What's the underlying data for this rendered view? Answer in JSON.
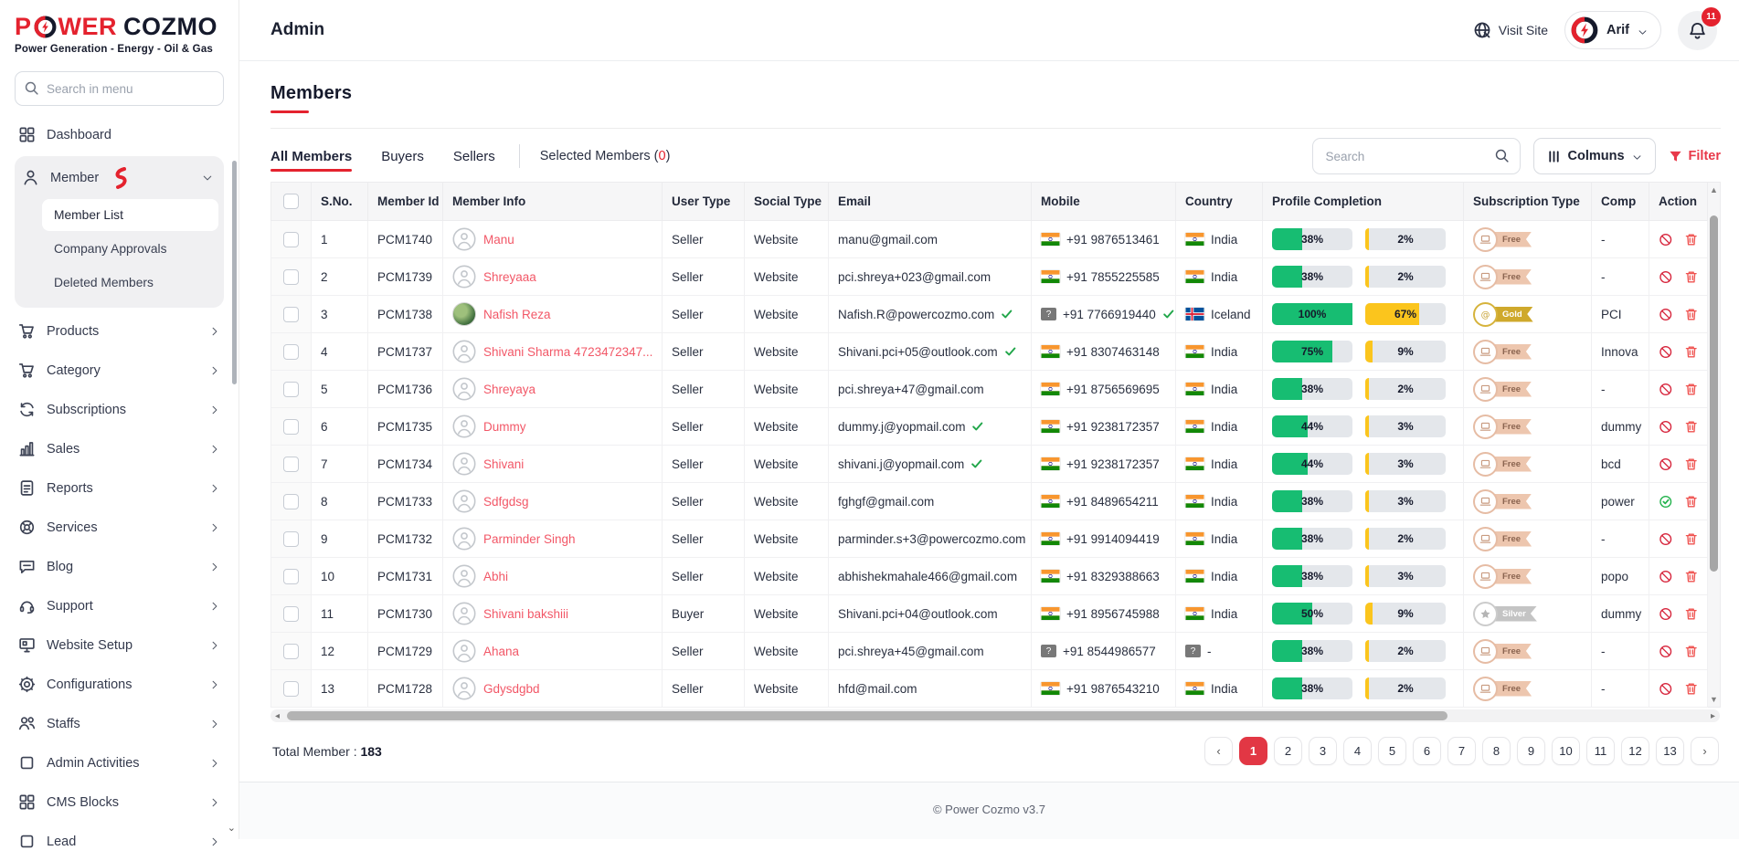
{
  "brand": {
    "power": "POWER",
    "cozmo": "COZMO",
    "tagline": "Power Generation - Energy - Oil & Gas"
  },
  "sidebar": {
    "search_placeholder": "Search in menu",
    "items": [
      {
        "label": "Dashboard",
        "icon": "dashboard",
        "chevron": false
      },
      {
        "label": "Member",
        "icon": "person",
        "chevron": "down",
        "expanded": true,
        "scribble": true,
        "submenu": [
          {
            "label": "Member List",
            "active": true
          },
          {
            "label": "Company Approvals",
            "active": false
          },
          {
            "label": "Deleted Members",
            "active": false
          }
        ]
      },
      {
        "label": "Products",
        "icon": "cart",
        "chevron": "right"
      },
      {
        "label": "Category",
        "icon": "cart",
        "chevron": "right"
      },
      {
        "label": "Subscriptions",
        "icon": "sync",
        "chevron": "right"
      },
      {
        "label": "Sales",
        "icon": "chart",
        "chevron": "right"
      },
      {
        "label": "Reports",
        "icon": "file",
        "chevron": "right"
      },
      {
        "label": "Services",
        "icon": "stamp",
        "chevron": "right"
      },
      {
        "label": "Blog",
        "icon": "chat",
        "chevron": "right"
      },
      {
        "label": "Support",
        "icon": "headset",
        "chevron": "right"
      },
      {
        "label": "Website Setup",
        "icon": "monitor",
        "chevron": "right"
      },
      {
        "label": "Configurations",
        "icon": "gear",
        "chevron": "right"
      },
      {
        "label": "Staffs",
        "icon": "people",
        "chevron": "right"
      },
      {
        "label": "Admin Activities",
        "icon": "box",
        "chevron": "right"
      },
      {
        "label": "CMS Blocks",
        "icon": "dashboard",
        "chevron": "right"
      },
      {
        "label": "Lead",
        "icon": "box",
        "chevron": "right"
      }
    ]
  },
  "header": {
    "title": "Admin",
    "visit_site": "Visit Site",
    "user_name": "Arif",
    "notification_count": "11"
  },
  "page": {
    "title": "Members"
  },
  "tabs": {
    "items": [
      {
        "label": "All Members",
        "active": true
      },
      {
        "label": "Buyers",
        "active": false
      },
      {
        "label": "Sellers",
        "active": false
      }
    ],
    "selected_label": "Selected Members",
    "selected_count": "0"
  },
  "controls": {
    "search_placeholder": "Search",
    "columns_label": "Colmuns",
    "filter_label": "Filter"
  },
  "table": {
    "columns": [
      "S.No.",
      "Member Id",
      "Member Info",
      "User Type",
      "Social Type",
      "Email",
      "Mobile",
      "Country",
      "Profile Completion",
      "Subscription Type",
      "Comp",
      "Action"
    ],
    "rows": [
      {
        "sno": "1",
        "member_id": "PCM1740",
        "name": "Manu",
        "avatar": "placeholder",
        "user_type": "Seller",
        "social_type": "Website",
        "email": "manu@gmail.com",
        "email_verified": false,
        "mobile": "+91 9876513461",
        "mobile_flag": "in",
        "mobile_verified": false,
        "country": "India",
        "country_flag": "in",
        "profile_pct": 38,
        "subscription_pct": 2,
        "subscription": "Free",
        "company": "-",
        "actions": [
          "block",
          "delete"
        ]
      },
      {
        "sno": "2",
        "member_id": "PCM1739",
        "name": "Shreyaaa",
        "avatar": "placeholder",
        "user_type": "Seller",
        "social_type": "Website",
        "email": "pci.shreya+023@gmail.com",
        "email_verified": false,
        "mobile": "+91 7855225585",
        "mobile_flag": "in",
        "mobile_verified": false,
        "country": "India",
        "country_flag": "in",
        "profile_pct": 38,
        "subscription_pct": 2,
        "subscription": "Free",
        "company": "-",
        "actions": [
          "block",
          "delete"
        ]
      },
      {
        "sno": "3",
        "member_id": "PCM1738",
        "name": "Nafish Reza",
        "avatar": "photo",
        "user_type": "Seller",
        "social_type": "Website",
        "email": "Nafish.R@powercozmo.com",
        "email_verified": true,
        "mobile": "+91 7766919440",
        "mobile_flag": "unknown",
        "mobile_verified": true,
        "country": "Iceland",
        "country_flag": "is",
        "profile_pct": 100,
        "subscription_pct": 67,
        "subscription": "Gold",
        "company": "PCI",
        "actions": [
          "block",
          "delete"
        ]
      },
      {
        "sno": "4",
        "member_id": "PCM1737",
        "name": "Shivani Sharma 4723472347...",
        "avatar": "placeholder",
        "user_type": "Seller",
        "social_type": "Website",
        "email": "Shivani.pci+05@outlook.com",
        "email_verified": true,
        "mobile": "+91 8307463148",
        "mobile_flag": "in",
        "mobile_verified": false,
        "country": "India",
        "country_flag": "in",
        "profile_pct": 75,
        "subscription_pct": 9,
        "subscription": "Free",
        "company": "Innova",
        "actions": [
          "block",
          "delete"
        ]
      },
      {
        "sno": "5",
        "member_id": "PCM1736",
        "name": "Shreyaya",
        "avatar": "placeholder",
        "user_type": "Seller",
        "social_type": "Website",
        "email": "pci.shreya+47@gmail.com",
        "email_verified": false,
        "mobile": "+91 8756569695",
        "mobile_flag": "in",
        "mobile_verified": false,
        "country": "India",
        "country_flag": "in",
        "profile_pct": 38,
        "subscription_pct": 2,
        "subscription": "Free",
        "company": "-",
        "actions": [
          "block",
          "delete"
        ]
      },
      {
        "sno": "6",
        "member_id": "PCM1735",
        "name": "Dummy",
        "avatar": "placeholder",
        "user_type": "Seller",
        "social_type": "Website",
        "email": "dummy.j@yopmail.com",
        "email_verified": true,
        "mobile": "+91 9238172357",
        "mobile_flag": "in",
        "mobile_verified": false,
        "country": "India",
        "country_flag": "in",
        "profile_pct": 44,
        "subscription_pct": 3,
        "subscription": "Free",
        "company": "dummy",
        "actions": [
          "block",
          "delete"
        ]
      },
      {
        "sno": "7",
        "member_id": "PCM1734",
        "name": "Shivani",
        "avatar": "placeholder",
        "user_type": "Seller",
        "social_type": "Website",
        "email": "shivani.j@yopmail.com",
        "email_verified": true,
        "mobile": "+91 9238172357",
        "mobile_flag": "in",
        "mobile_verified": false,
        "country": "India",
        "country_flag": "in",
        "profile_pct": 44,
        "subscription_pct": 3,
        "subscription": "Free",
        "company": "bcd",
        "actions": [
          "block",
          "delete"
        ]
      },
      {
        "sno": "8",
        "member_id": "PCM1733",
        "name": "Sdfgdsg",
        "avatar": "placeholder",
        "user_type": "Seller",
        "social_type": "Website",
        "email": "fghgf@gmail.com",
        "email_verified": false,
        "mobile": "+91 8489654211",
        "mobile_flag": "in",
        "mobile_verified": false,
        "country": "India",
        "country_flag": "in",
        "profile_pct": 38,
        "subscription_pct": 3,
        "subscription": "Free",
        "company": "power",
        "actions": [
          "restore",
          "delete"
        ]
      },
      {
        "sno": "9",
        "member_id": "PCM1732",
        "name": "Parminder Singh",
        "avatar": "placeholder",
        "user_type": "Seller",
        "social_type": "Website",
        "email": "parminder.s+3@powercozmo.com",
        "email_verified": false,
        "mobile": "+91 9914094419",
        "mobile_flag": "in",
        "mobile_verified": false,
        "country": "India",
        "country_flag": "in",
        "profile_pct": 38,
        "subscription_pct": 2,
        "subscription": "Free",
        "company": "-",
        "actions": [
          "block",
          "delete"
        ]
      },
      {
        "sno": "10",
        "member_id": "PCM1731",
        "name": "Abhi",
        "avatar": "placeholder",
        "user_type": "Seller",
        "social_type": "Website",
        "email": "abhishekmahale466@gmail.com",
        "email_verified": false,
        "mobile": "+91 8329388663",
        "mobile_flag": "in",
        "mobile_verified": false,
        "country": "India",
        "country_flag": "in",
        "profile_pct": 38,
        "subscription_pct": 3,
        "subscription": "Free",
        "company": "popo",
        "actions": [
          "block",
          "delete"
        ]
      },
      {
        "sno": "11",
        "member_id": "PCM1730",
        "name": "Shivani bakshiii",
        "avatar": "placeholder",
        "user_type": "Buyer",
        "social_type": "Website",
        "email": "Shivani.pci+04@outlook.com",
        "email_verified": false,
        "mobile": "+91 8956745988",
        "mobile_flag": "in",
        "mobile_verified": false,
        "country": "India",
        "country_flag": "in",
        "profile_pct": 50,
        "subscription_pct": 9,
        "subscription": "Silver",
        "company": "dummy",
        "actions": [
          "block",
          "delete"
        ]
      },
      {
        "sno": "12",
        "member_id": "PCM1729",
        "name": "Ahana",
        "avatar": "placeholder",
        "user_type": "Seller",
        "social_type": "Website",
        "email": "pci.shreya+45@gmail.com",
        "email_verified": false,
        "mobile": "+91 8544986577",
        "mobile_flag": "unknown",
        "mobile_verified": false,
        "country": "-",
        "country_flag": "unknown",
        "profile_pct": 38,
        "subscription_pct": 2,
        "subscription": "Free",
        "company": "-",
        "actions": [
          "block",
          "delete"
        ]
      },
      {
        "sno": "13",
        "member_id": "PCM1728",
        "name": "Gdysdgbd",
        "avatar": "placeholder",
        "user_type": "Seller",
        "social_type": "Website",
        "email": "hfd@mail.com",
        "email_verified": false,
        "mobile": "+91 9876543210",
        "mobile_flag": "in",
        "mobile_verified": false,
        "country": "India",
        "country_flag": "in",
        "profile_pct": 38,
        "subscription_pct": 2,
        "subscription": "Free",
        "company": "-",
        "actions": [
          "block",
          "delete"
        ]
      }
    ]
  },
  "summary": {
    "label": "Total Member : ",
    "value": "183"
  },
  "pagination": {
    "prev": "‹",
    "next": "›",
    "pages": [
      "1",
      "2",
      "3",
      "4",
      "5",
      "6",
      "7",
      "8",
      "9",
      "10",
      "11",
      "12",
      "13"
    ],
    "active": "1"
  },
  "footer": {
    "copyright": "© Power Cozmo v3.7"
  },
  "colors": {
    "accent_red": "#e4222e",
    "progress_green": "#17bd72",
    "progress_yellow": "#fbc51d",
    "name_link": "#f25767",
    "free_badge": "#edc6ae",
    "gold_badge": "#d3ac2e",
    "silver_badge": "#c4c4c4"
  }
}
